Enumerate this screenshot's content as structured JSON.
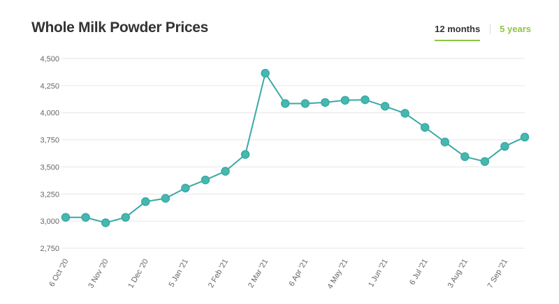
{
  "header": {
    "title": "Whole Milk Powder Prices"
  },
  "tabs": [
    {
      "label": "12 months",
      "active": true
    },
    {
      "label": "5 years",
      "active": false
    }
  ],
  "colors": {
    "line": "#3aa9a3",
    "marker_fill": "#45b8b0",
    "accent_green": "#8cc63f",
    "grid": "#e6e6e6"
  },
  "chart_data": {
    "type": "line",
    "title": "Whole Milk Powder Prices",
    "xlabel": "",
    "ylabel": "",
    "ylim": [
      2750,
      4500
    ],
    "yticks": [
      2750,
      3000,
      3250,
      3500,
      3750,
      4000,
      4250,
      4500
    ],
    "ytick_labels": [
      "2,750",
      "3,000",
      "3,250",
      "3,500",
      "3,750",
      "4,000",
      "4,250",
      "4,500"
    ],
    "xtick_labels": [
      "6 Oct '20",
      "3 Nov '20",
      "1 Dec '20",
      "5 Jan '21",
      "2 Feb '21",
      "2 Mar '21",
      "6 Apr '21",
      "4 May '21",
      "1 Jun '21",
      "6 Jul '21",
      "3 Aug '21",
      "7 Sep '21"
    ],
    "xtick_indices": [
      0,
      2,
      4,
      6,
      8,
      10,
      12,
      14,
      16,
      18,
      20,
      22
    ],
    "grid": true,
    "legend": null,
    "series": [
      {
        "name": "Whole Milk Powder",
        "values": [
          3035,
          3035,
          2985,
          3035,
          3180,
          3210,
          3305,
          3380,
          3460,
          3615,
          4365,
          4085,
          4085,
          4095,
          4115,
          4120,
          4060,
          3995,
          3865,
          3730,
          3595,
          3550,
          3690,
          3775
        ]
      }
    ]
  }
}
